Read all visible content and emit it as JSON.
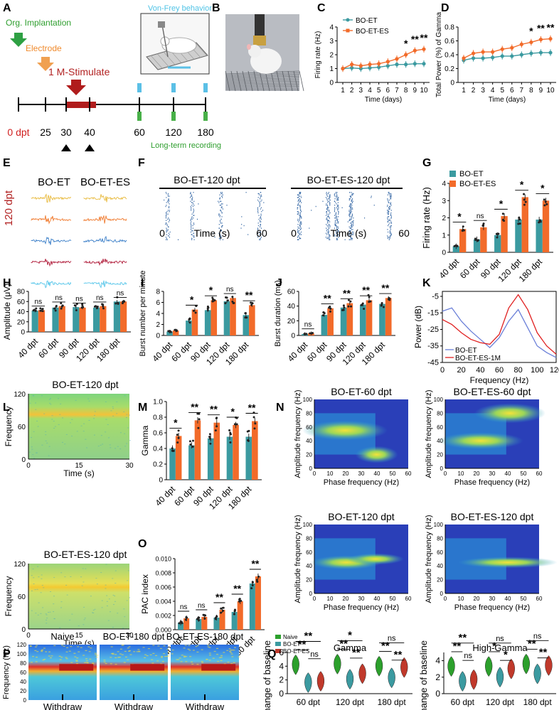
{
  "colors": {
    "et": "#3b9aa0",
    "es": "#f26b2a",
    "naive": "#2ca02c",
    "esRed": "#c0392b",
    "green": "#2e9e2e",
    "orange": "#f08a2c",
    "darkred": "#b22222",
    "cyan": "#4fc3e6"
  },
  "panelA": {
    "letter": "A",
    "org_label": "Org. Implantation",
    "electrode_label": "Electrode",
    "stim_label": "1 M-Stimulate",
    "vonfrey_label": "Von-Frey behavior",
    "longterm_label": "Long-term recording",
    "ticks": [
      "0 dpt",
      "25",
      "30",
      "40",
      "60",
      "120",
      "180"
    ]
  },
  "panelB": {
    "letter": "B"
  },
  "panelC": {
    "letter": "C",
    "chart_data": {
      "type": "line",
      "x": [
        1,
        2,
        3,
        4,
        5,
        6,
        7,
        8,
        9,
        10
      ],
      "series": [
        {
          "name": "BO-ET",
          "values": [
            1.0,
            1.05,
            1.0,
            1.05,
            1.1,
            1.2,
            1.3,
            1.3,
            1.35,
            1.35
          ]
        },
        {
          "name": "BO-ET-ES",
          "values": [
            1.0,
            1.3,
            1.2,
            1.3,
            1.35,
            1.5,
            1.7,
            2.0,
            2.3,
            2.4
          ]
        }
      ],
      "xlabel": "Time (days)",
      "ylabel": "Firing rate (Hz)",
      "ylim": [
        0,
        4
      ],
      "yticks": [
        "0",
        "1",
        "2",
        "3",
        "4"
      ],
      "sig": [
        "*",
        "**",
        "**"
      ]
    }
  },
  "panelD": {
    "letter": "D",
    "chart_data": {
      "type": "line",
      "x": [
        1,
        2,
        3,
        4,
        5,
        6,
        7,
        8,
        9,
        10
      ],
      "series": [
        {
          "name": "BO-ET",
          "values": [
            0.32,
            0.35,
            0.35,
            0.36,
            0.38,
            0.38,
            0.4,
            0.42,
            0.43,
            0.43
          ]
        },
        {
          "name": "BO-ET-ES",
          "values": [
            0.35,
            0.42,
            0.44,
            0.44,
            0.48,
            0.5,
            0.55,
            0.58,
            0.62,
            0.63
          ]
        }
      ],
      "xlabel": "Time (days)",
      "ylabel": "Total Power (%) of Gamma",
      "ylim": [
        0,
        0.8
      ],
      "yticks": [
        "0",
        "0.2",
        "0.4",
        "0.6",
        "0.8"
      ],
      "sig": [
        "*",
        "**",
        "**"
      ]
    }
  },
  "panelE": {
    "letter": "E",
    "col1": "BO-ET",
    "col2": "BO-ET-ES",
    "side": "120 dpt"
  },
  "panelF": {
    "letter": "F",
    "title1": "BO-ET-120 dpt",
    "title2": "BO-ET-ES-120 dpt",
    "xlabel": "Time (s)",
    "x0": "0",
    "x1": "60"
  },
  "panelG": {
    "letter": "G",
    "chart_data": {
      "type": "bar",
      "categories": [
        "40 dpt",
        "60 dpt",
        "90 dpt",
        "120 dpt",
        "180 dpt"
      ],
      "series": [
        {
          "name": "BO-ET",
          "values": [
            0.35,
            0.75,
            1.0,
            1.9,
            1.9
          ]
        },
        {
          "name": "BO-ET-ES",
          "values": [
            1.35,
            1.45,
            2.1,
            3.2,
            3.0
          ]
        }
      ],
      "ylabel": "Firing rate (Hz)",
      "ylim": [
        0,
        4
      ],
      "yticks": [
        "0",
        "1",
        "2",
        "3",
        "4"
      ],
      "sig": [
        "*",
        "ns",
        "*",
        "*",
        "*"
      ]
    }
  },
  "panelH": {
    "letter": "H",
    "chart_data": {
      "type": "bar",
      "categories": [
        "40 dpt",
        "60 dpt",
        "90 dpt",
        "120 dpt",
        "180 dpt"
      ],
      "series": [
        {
          "name": "BO-ET",
          "values": [
            42,
            48,
            49,
            48,
            60
          ]
        },
        {
          "name": "BO-ET-ES",
          "values": [
            43,
            51,
            48,
            51,
            60
          ]
        }
      ],
      "ylabel": "Amplitude (μV)",
      "ylim": [
        0,
        80
      ],
      "yticks": [
        "0",
        "20",
        "40",
        "60",
        "80"
      ],
      "sig": [
        "ns",
        "ns",
        "ns",
        "ns",
        "ns"
      ]
    }
  },
  "panelI": {
    "letter": "I",
    "chart_data": {
      "type": "bar",
      "categories": [
        "40 dpt",
        "60 dpt",
        "90 dpt",
        "120 dpt",
        "180 dpt"
      ],
      "series": [
        {
          "name": "BO-ET",
          "values": [
            0.7,
            2.7,
            4.6,
            6.2,
            3.7
          ]
        },
        {
          "name": "BO-ET-ES",
          "values": [
            0.9,
            4.7,
            6.4,
            6.8,
            5.5
          ]
        }
      ],
      "ylabel": "Burst number per minute",
      "ylim": [
        0,
        8
      ],
      "yticks": [
        "0",
        "2",
        "4",
        "6",
        "8"
      ],
      "sig": [
        "",
        "*",
        "*",
        "ns",
        "**"
      ]
    }
  },
  "panelJ": {
    "letter": "J",
    "chart_data": {
      "type": "bar",
      "categories": [
        "40 dpt",
        "60 dpt",
        "90 dpt",
        "120 dpt",
        "180 dpt"
      ],
      "series": [
        {
          "name": "BO-ET",
          "values": [
            2,
            28,
            38,
            42,
            43
          ]
        },
        {
          "name": "BO-ET-ES",
          "values": [
            3,
            37,
            44,
            48,
            51
          ]
        }
      ],
      "ylabel": "Burst duration (ms)",
      "ylim": [
        0,
        60
      ],
      "yticks": [
        "0",
        "20",
        "40",
        "60"
      ],
      "sig": [
        "ns",
        "**",
        "**",
        "**",
        "**"
      ]
    }
  },
  "panelK": {
    "letter": "K",
    "chart_data": {
      "type": "line",
      "series": [
        {
          "name": "BO-ET",
          "x": [
            0,
            10,
            20,
            30,
            40,
            50,
            60,
            70,
            80,
            90,
            100,
            110,
            120
          ],
          "values": [
            -14,
            -12,
            -20,
            -26,
            -31,
            -36,
            -30,
            -20,
            -13,
            -24,
            -35,
            -39,
            -42
          ]
        },
        {
          "name": "BO-ET-ES-1M",
          "x": [
            0,
            10,
            20,
            30,
            40,
            50,
            60,
            70,
            80,
            90,
            100,
            110,
            120
          ],
          "values": [
            -19,
            -22,
            -27,
            -31,
            -33,
            -34,
            -28,
            -12,
            -4,
            -13,
            -27,
            -35,
            -40
          ]
        }
      ],
      "xlabel": "Frequency (Hz)",
      "ylabel": "Power (dB)",
      "ylim": [
        -45,
        -2
      ],
      "yticks": [
        "-5",
        "-15",
        "-25",
        "-35",
        "-45"
      ],
      "xticks": [
        "0",
        "20",
        "40",
        "60",
        "80",
        "100",
        "120"
      ]
    }
  },
  "panelL": {
    "letter": "L",
    "title1": "BO-ET-120 dpt",
    "title2": "BO-ET-ES-120 dpt",
    "ylabel": "Frequency",
    "xlabel": "Time (s)",
    "yticks": [
      "120",
      "60",
      "0"
    ],
    "xticks": [
      "0",
      "15",
      "30"
    ]
  },
  "panelM": {
    "letter": "M",
    "chart_data": {
      "type": "bar",
      "categories": [
        "40 dpt",
        "60 dpt",
        "90 dpt",
        "120 dpt",
        "180 dpt"
      ],
      "series": [
        {
          "name": "BO-ET",
          "values": [
            0.4,
            0.44,
            0.53,
            0.55,
            0.55
          ]
        },
        {
          "name": "BO-ET-ES",
          "values": [
            0.56,
            0.76,
            0.73,
            0.7,
            0.75
          ]
        }
      ],
      "ylabel": "Gamma",
      "ylim": [
        0,
        1.0
      ],
      "yticks": [
        "0",
        "0.2",
        "0.4",
        "0.6",
        "0.8",
        "1.0"
      ],
      "sig": [
        "*",
        "**",
        "**",
        "*",
        "**"
      ]
    }
  },
  "panelO": {
    "letter": "O",
    "chart_data": {
      "type": "bar",
      "categories": [
        "40 dpt",
        "60 dpt",
        "90 dpt",
        "120 dpt",
        "180 dpt"
      ],
      "series": [
        {
          "name": "BO-ET",
          "values": [
            0.001,
            0.0015,
            0.0017,
            0.0025,
            0.0065
          ]
        },
        {
          "name": "BO-ET-ES",
          "values": [
            0.0016,
            0.0018,
            0.0028,
            0.004,
            0.0075
          ]
        }
      ],
      "ylabel": "PAC index",
      "ylim": [
        0,
        0.01
      ],
      "yticks": [
        "0.000",
        "0.002",
        "0.004",
        "0.006",
        "0.008",
        "0.010"
      ],
      "sig": [
        "ns",
        "ns",
        "**",
        "**",
        "**"
      ]
    }
  },
  "panelN": {
    "letter": "N",
    "titles": [
      "BO-ET-60 dpt",
      "BO-ET-ES-60 dpt",
      "BO-ET-120 dpt",
      "BO-ET-ES-120 dpt"
    ],
    "xlabel": "Phase frequency (Hz)",
    "ylabel": "Amplitude frequency (Hz)",
    "xticks": [
      "0",
      "10",
      "20",
      "30",
      "40",
      "50",
      "60"
    ],
    "yticks": [
      "100",
      "80",
      "60",
      "40",
      "20",
      "0"
    ]
  },
  "panelP": {
    "letter": "P",
    "titles": [
      "Naive",
      "BO-ET-180 dpt",
      "BO-ET-ES-180 dpt"
    ],
    "ylabel": "Frequency (Hz)",
    "withdraw": "Withdraw",
    "yticks": [
      "120",
      "100",
      "80",
      "60",
      "40",
      "20",
      "0"
    ]
  },
  "panelQ": {
    "letter": "Q",
    "legend": [
      "Naive",
      "BO-ET",
      "BO-ET-ES"
    ],
    "ylabel": "Change of baseline",
    "categories": [
      "60 dpt",
      "120 dpt",
      "180 dpt"
    ],
    "gamma": {
      "title": "Gamma",
      "yticks": [
        "0",
        "2",
        "4",
        "6"
      ],
      "chart_data": {
        "type": "violin",
        "naive": [
          4.2,
          4.3,
          4.0
        ],
        "et": [
          1.6,
          2.1,
          2.3
        ],
        "es": [
          1.8,
          2.9,
          3.8
        ]
      },
      "sig_top": [
        "**",
        "*",
        "ns"
      ],
      "sig_mid": [
        "**",
        "**",
        "**"
      ],
      "sig_low": [
        "ns",
        "**",
        "**"
      ]
    },
    "high": {
      "title": "High-Gamma",
      "yticks": [
        "0",
        "2",
        "4"
      ],
      "chart_data": {
        "type": "violin",
        "naive": [
          3.3,
          3.3,
          3.6
        ],
        "et": [
          1.5,
          2.0,
          2.4
        ],
        "es": [
          1.7,
          3.0,
          3.4
        ]
      },
      "sig_top": [
        "**",
        "ns",
        "ns"
      ],
      "sig_mid": [
        "**",
        "*",
        "**"
      ],
      "sig_low": [
        "ns",
        "*",
        "**"
      ]
    }
  }
}
